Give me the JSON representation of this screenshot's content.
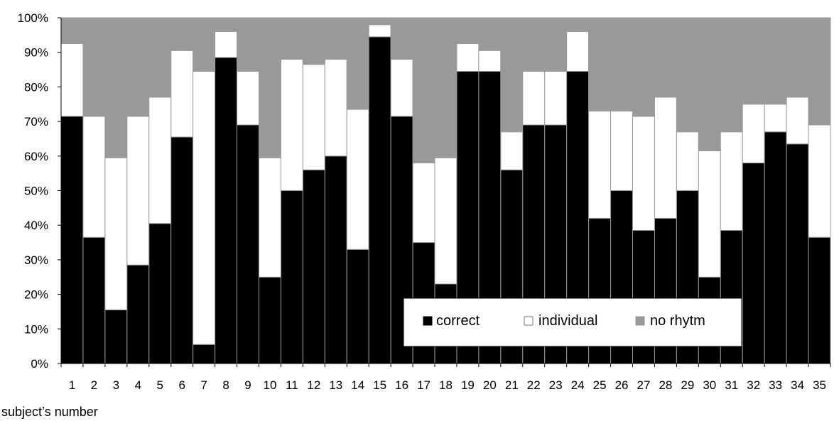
{
  "chart_data": {
    "type": "bar",
    "stacked": true,
    "percent_stacked": true,
    "title": "",
    "xlabel": "subject’s number",
    "ylabel": "",
    "ylim": [
      0,
      100
    ],
    "yticks": [
      "0%",
      "10%",
      "20%",
      "30%",
      "40%",
      "50%",
      "60%",
      "70%",
      "80%",
      "90%",
      "100%"
    ],
    "grid": false,
    "legend_position": "bottom-right",
    "categories": [
      "1",
      "2",
      "3",
      "4",
      "5",
      "6",
      "7",
      "8",
      "9",
      "10",
      "11",
      "12",
      "13",
      "14",
      "15",
      "16",
      "17",
      "18",
      "19",
      "20",
      "21",
      "22",
      "23",
      "24",
      "25",
      "26",
      "27",
      "28",
      "29",
      "30",
      "31",
      "32",
      "33",
      "34",
      "35"
    ],
    "series": [
      {
        "name": "correct",
        "color": "#000000",
        "values": [
          71.5,
          36.5,
          15.5,
          28.5,
          40.5,
          65.5,
          5.5,
          88.5,
          69,
          25,
          50,
          56,
          60,
          33,
          94.5,
          71.5,
          35,
          23,
          84.5,
          84.5,
          56,
          69,
          69,
          84.5,
          42,
          50,
          38.5,
          42,
          50,
          25,
          38.5,
          58,
          67,
          63.5,
          36.5
        ]
      },
      {
        "name": "individual",
        "color": "#ffffff",
        "values": [
          21,
          35,
          44,
          43,
          36.5,
          25,
          79,
          7.5,
          15.5,
          34.5,
          38,
          30.5,
          28,
          40.5,
          3.5,
          16.5,
          23,
          36.5,
          8,
          6,
          11,
          15.5,
          15.5,
          11.5,
          31,
          23,
          33,
          35,
          17,
          36.5,
          28.5,
          17,
          8,
          13.5,
          32.5
        ]
      },
      {
        "name": "no rhytm",
        "color": "#999999",
        "values": [
          7.5,
          28.5,
          40.5,
          28.5,
          23,
          9.5,
          15.5,
          4,
          15.5,
          40.5,
          12,
          13.5,
          12,
          26.5,
          2,
          12,
          42,
          40.5,
          7.5,
          9.5,
          33,
          15.5,
          15.5,
          4,
          27,
          27,
          28.5,
          23,
          33,
          38.5,
          33,
          25,
          25,
          23,
          31
        ]
      }
    ]
  }
}
